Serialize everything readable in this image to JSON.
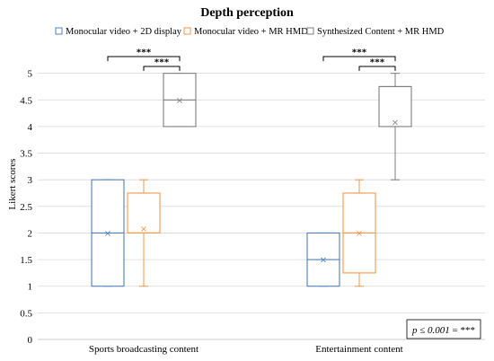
{
  "chart_data": {
    "type": "box",
    "title": "Depth perception",
    "xlabel": "",
    "ylabel": "Likert scores",
    "ylim": [
      0,
      5.5
    ],
    "yticks": [
      "0",
      "0.5",
      "1",
      "1.5",
      "2",
      "2.5",
      "3",
      "3.5",
      "4",
      "4.5",
      "5"
    ],
    "grid": true,
    "legend_position": "top",
    "categories": [
      "Sports broadcasting content",
      "Entertainment content"
    ],
    "series": [
      {
        "name": "Monocular video + 2D display",
        "color": "#4f81bd",
        "boxes": [
          {
            "min": 1,
            "q1": 1,
            "median": 2,
            "q3": 3,
            "max": 3,
            "mean": 2
          },
          {
            "min": 1,
            "q1": 1,
            "median": 1.5,
            "q3": 2,
            "max": 2,
            "mean": 1.5
          }
        ]
      },
      {
        "name": "Monocular video + MR HMD",
        "color": "#f79646",
        "boxes": [
          {
            "min": 1,
            "q1": 2,
            "median": 2,
            "q3": 2.75,
            "max": 3,
            "mean": 2.08
          },
          {
            "min": 1,
            "q1": 1.25,
            "median": 2,
            "q3": 2.75,
            "max": 3,
            "mean": 2
          }
        ]
      },
      {
        "name": "Synthesized Content + MR HMD",
        "color": "#7f7f7f",
        "boxes": [
          {
            "min": 4,
            "q1": 4,
            "median": 4.5,
            "q3": 5,
            "max": 5,
            "mean": 4.5
          },
          {
            "min": 3,
            "q1": 4,
            "median": 4.75,
            "q3": 4.75,
            "max": 5,
            "mean": 4.08
          }
        ]
      }
    ],
    "significance": [
      {
        "category": 0,
        "from_series": 0,
        "to_series": 2,
        "label": "***"
      },
      {
        "category": 0,
        "from_series": 1,
        "to_series": 2,
        "label": "***"
      },
      {
        "category": 1,
        "from_series": 0,
        "to_series": 2,
        "label": "***"
      },
      {
        "category": 1,
        "from_series": 1,
        "to_series": 2,
        "label": "***"
      }
    ],
    "annotation": {
      "italic_part": "p ≤ 0.001",
      "rest": " = ***"
    },
    "mean_marker": "×"
  }
}
